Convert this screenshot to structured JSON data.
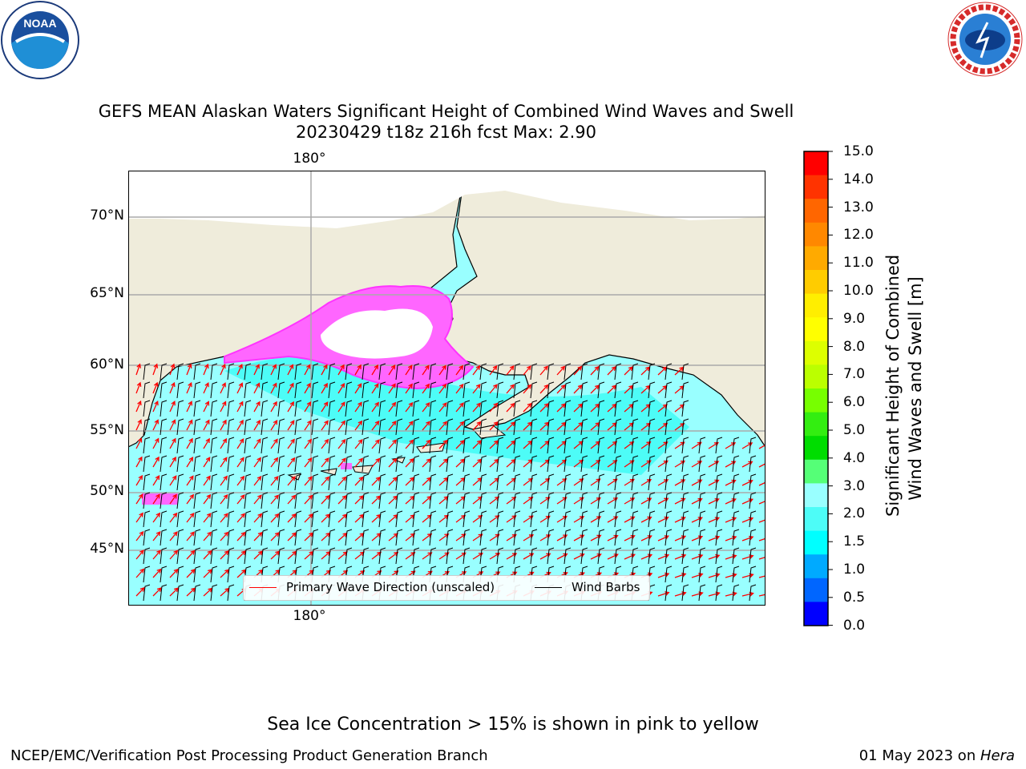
{
  "title": {
    "line1": "GEFS MEAN Alaskan Waters Significant Height of Combined Wind Waves and Swell",
    "line2": "20230429 t18z 216h fcst   Max: 2.90"
  },
  "map": {
    "lat_labels": [
      "70°N",
      "65°N",
      "60°N",
      "55°N",
      "50°N",
      "45°N"
    ],
    "lon_label_top": "180°",
    "lon_label_bottom": "180°",
    "colors": {
      "land": "#efecdb",
      "ocean": "#99ffff",
      "ocean_band": "#4dfcf7",
      "ice": "#ff66ff",
      "ice_edge": "#ff33ff",
      "ice_interior": "#ffffff",
      "gridline": "#aaaaaa",
      "wave_arrow": "#ff0000",
      "wind_barb": "#000000"
    }
  },
  "legend": {
    "wave_label": "Primary Wave Direction (unscaled)",
    "wind_label": "Wind Barbs"
  },
  "colorbar": {
    "label_line1": "Significant Height of Combined",
    "label_line2": "Wind Waves and Swell [m]",
    "ticks": [
      "15.0",
      "14.0",
      "13.0",
      "12.0",
      "11.0",
      "10.0",
      "9.0",
      "8.0",
      "7.0",
      "6.0",
      "5.0",
      "4.0",
      "3.0",
      "2.0",
      "1.5",
      "1.0",
      "0.5",
      "0.0"
    ],
    "colors_top_to_bottom": [
      "#ff0000",
      "#ff3300",
      "#ff6600",
      "#ff8800",
      "#ffaa00",
      "#ffcc00",
      "#ffee00",
      "#ffff00",
      "#ddff00",
      "#bbff00",
      "#77ff00",
      "#33ee11",
      "#00dd00",
      "#55ff77",
      "#99ffff",
      "#4dfcf7",
      "#00ffff",
      "#00aaff",
      "#0066ff",
      "#0000ff"
    ]
  },
  "logos": {
    "noaa_text": "NOAA",
    "nws_text": "NATIONAL WEATHER SERVICE"
  },
  "note": "Sea Ice Concentration > 15% is shown in pink to yellow",
  "footer": {
    "left": "NCEP/EMC/Verification Post Processing Product Generation Branch",
    "right_date": "01 May 2023 on ",
    "right_machine": "Hera"
  }
}
